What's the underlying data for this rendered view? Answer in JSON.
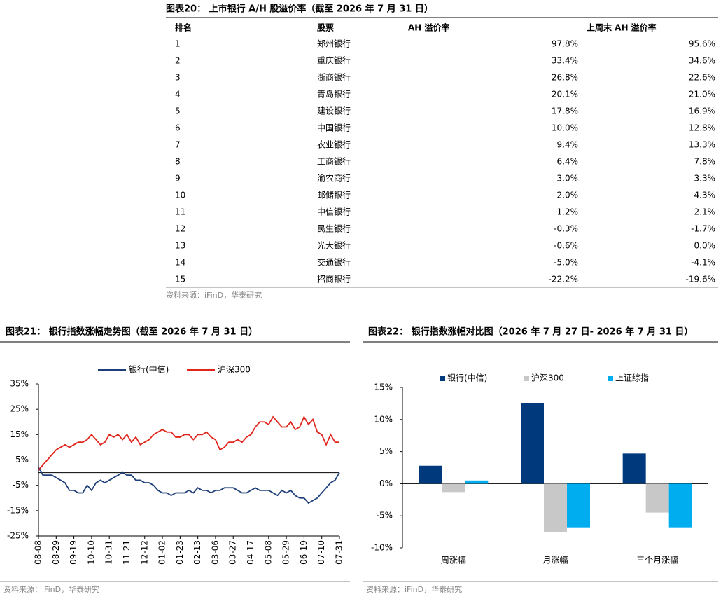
{
  "table": {
    "title": "图表20：  上市银行 A/H 股溢价率（截至 2026 年 7 月 31 日）",
    "header": [
      "排名",
      "股票",
      "AH 溢价率",
      "上周末 AH 溢价率"
    ],
    "rows": [
      [
        "1",
        "郑州银行",
        "97.8%",
        "95.6%"
      ],
      [
        "2",
        "重庆银行",
        "33.4%",
        "34.6%"
      ],
      [
        "3",
        "浙商银行",
        "26.8%",
        "22.6%"
      ],
      [
        "4",
        "青岛银行",
        "20.1%",
        "21.0%"
      ],
      [
        "5",
        "建设银行",
        "17.8%",
        "16.9%"
      ],
      [
        "6",
        "中国银行",
        "10.0%",
        "12.8%"
      ],
      [
        "7",
        "农业银行",
        "9.4%",
        "13.3%"
      ],
      [
        "8",
        "工商银行",
        "6.4%",
        "7.8%"
      ],
      [
        "9",
        "渝农商行",
        "3.0%",
        "3.3%"
      ],
      [
        "10",
        "邮储银行",
        "2.0%",
        "4.3%"
      ],
      [
        "11",
        "中信银行",
        "1.2%",
        "2.1%"
      ],
      [
        "12",
        "民生银行",
        "-0.3%",
        "-1.7%"
      ],
      [
        "13",
        "光大银行",
        "-0.6%",
        "0.0%"
      ],
      [
        "14",
        "交通银行",
        "-5.0%",
        "-4.1%"
      ],
      [
        "15",
        "招商银行",
        "-22.2%",
        "-19.6%"
      ]
    ],
    "source": "资料来源：iFinD，华泰研究"
  },
  "chart_data": [
    {
      "type": "line",
      "title": "图表21：  银行指数涨幅走势图（截至 2026 年 7 月 31 日）",
      "source": "资料来源：iFinD，华泰研究",
      "categories": [
        "08-08",
        null,
        null,
        null,
        "08-29",
        null,
        null,
        null,
        "09-19",
        null,
        null,
        null,
        "10-10",
        null,
        null,
        null,
        "10-31",
        null,
        null,
        null,
        "11-21",
        null,
        null,
        null,
        "12-12",
        null,
        null,
        null,
        "01-02",
        null,
        null,
        null,
        "01-23",
        null,
        null,
        null,
        "02-13",
        null,
        null,
        null,
        "03-06",
        null,
        null,
        null,
        "03-27",
        null,
        null,
        null,
        "04-17",
        null,
        null,
        null,
        "05-08",
        null,
        null,
        null,
        "05-29",
        null,
        null,
        null,
        "06-19",
        null,
        null,
        null,
        "07-10",
        null,
        null,
        null,
        "07-31"
      ],
      "series": [
        {
          "name": "银行(中信)",
          "color": "#1f3f7a",
          "values": [
            2,
            -1,
            -1,
            -1,
            -2,
            -3,
            -4,
            -7,
            -7,
            -8,
            -8,
            -5,
            -7,
            -4,
            -3,
            -4,
            -3,
            -2,
            -1,
            0,
            -1,
            -1,
            -3,
            -3,
            -4,
            -4,
            -5,
            -7,
            -8,
            -8,
            -9,
            -8,
            -8,
            -8,
            -7,
            -8,
            -6,
            -7,
            -7,
            -8,
            -7,
            -7,
            -6,
            -6,
            -6,
            -7,
            -8,
            -8,
            -7,
            -6,
            -7,
            -7,
            -7,
            -8,
            -9,
            -7,
            -8,
            -7,
            -9,
            -10,
            -10,
            -12,
            -11,
            -10,
            -8,
            -6,
            -4,
            -3,
            0
          ]
        },
        {
          "name": "沪深300",
          "color": "#e0261c",
          "values": [
            1,
            3,
            5,
            7,
            9,
            10,
            11,
            10,
            11,
            12,
            12,
            13,
            15,
            13,
            11,
            12,
            15,
            14,
            15,
            13,
            15,
            12,
            14,
            11,
            12,
            13,
            15,
            16,
            17,
            16,
            16,
            14,
            14,
            15,
            15,
            13,
            15,
            15,
            16,
            14,
            13,
            9,
            10,
            12,
            12,
            13,
            12,
            14,
            15,
            18,
            20,
            20,
            19,
            22,
            20,
            18,
            18,
            20,
            17,
            18,
            22,
            19,
            21,
            16,
            15,
            11,
            15,
            12,
            12
          ]
        }
      ],
      "ylim": [
        -25,
        35
      ],
      "yticks": [
        {
          "value": -25,
          "label": "-25%"
        },
        {
          "value": -15,
          "label": "-15%"
        },
        {
          "value": -5,
          "label": "-5%"
        },
        {
          "value": 5,
          "label": "5%"
        },
        {
          "value": 15,
          "label": "15%"
        },
        {
          "value": 25,
          "label": "25%"
        },
        {
          "value": 35,
          "label": "35%"
        }
      ]
    },
    {
      "type": "bar",
      "title": "图表22：  银行指数涨幅对比图（2026 年 7 月 27 日- 2026 年 7 月 31 日）",
      "source": "资料来源：iFinD，华泰研究",
      "categories": [
        "周涨幅",
        "月涨幅",
        "三个月涨幅"
      ],
      "series": [
        {
          "name": "银行(中信)",
          "color": "#003a7d",
          "values": [
            2.8,
            12.6,
            4.7
          ]
        },
        {
          "name": "沪深300",
          "color": "#c8c8c8",
          "values": [
            -1.3,
            -7.5,
            -4.5
          ]
        },
        {
          "name": "上证综指",
          "color": "#00aeef",
          "values": [
            0.5,
            -6.8,
            -6.8
          ]
        }
      ],
      "ylim": [
        -10,
        15
      ],
      "yticks": [
        {
          "value": -10,
          "label": "-10%"
        },
        {
          "value": -5,
          "label": "-5%"
        },
        {
          "value": 0,
          "label": "0%"
        },
        {
          "value": 5,
          "label": "5%"
        },
        {
          "value": 10,
          "label": "10%"
        },
        {
          "value": 15,
          "label": "15%"
        }
      ]
    }
  ]
}
